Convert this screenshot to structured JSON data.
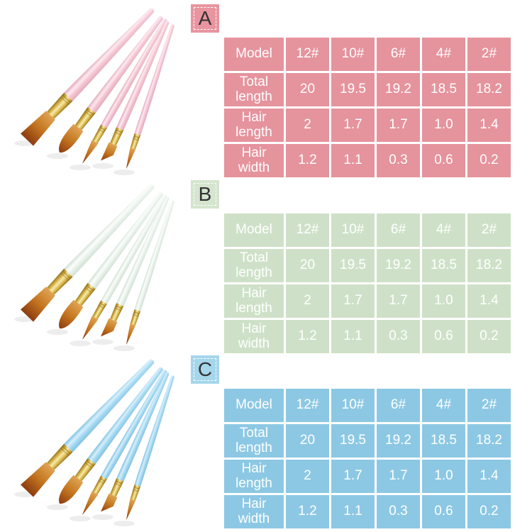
{
  "page": {
    "background": "#ffffff"
  },
  "brush_palette": {
    "bristle_base": "#dfa352",
    "bristle_mid": "#c4751f",
    "bristle_tip": "#8c3c10",
    "ferrule_dark": "#8f6d1c",
    "ferrule_gold": "#d9b84a",
    "ferrule_highlight": "#f7eab0",
    "table_text": "#ffffff"
  },
  "sections": [
    {
      "label": "A",
      "photo": "five-pink-paint-brushes",
      "colors": {
        "table_cell": "#e5939d",
        "label_bg": "#e8959f",
        "handle": "#f5c8d4",
        "handle_shade": "#e3a8ba",
        "handle_light": "#fdeaf1"
      },
      "table": {
        "corner": "Model",
        "columns": [
          "12#",
          "10#",
          "6#",
          "4#",
          "2#"
        ],
        "rows": [
          {
            "label": "Total length",
            "values": [
              "20",
              "19.5",
              "19.2",
              "18.5",
              "18.2"
            ]
          },
          {
            "label": "Hair length",
            "values": [
              "2",
              "1.7",
              "1.7",
              "1.0",
              "1.4"
            ]
          },
          {
            "label": "Hair width",
            "values": [
              "1.2",
              "1.1",
              "0.3",
              "0.6",
              "0.2"
            ]
          }
        ]
      }
    },
    {
      "label": "B",
      "photo": "five-mint-white-paint-brushes",
      "colors": {
        "table_cell": "#cee1c8",
        "label_bg": "#d5e5cf",
        "handle": "#eaf3ec",
        "handle_shade": "#cfe0d2",
        "handle_light": "#fbfdfb"
      },
      "table": {
        "corner": "Model",
        "columns": [
          "12#",
          "10#",
          "6#",
          "4#",
          "2#"
        ],
        "rows": [
          {
            "label": "Total length",
            "values": [
              "20",
              "19.5",
              "19.2",
              "18.5",
              "18.2"
            ]
          },
          {
            "label": "Hair length",
            "values": [
              "2",
              "1.7",
              "1.7",
              "1.0",
              "1.4"
            ]
          },
          {
            "label": "Hair width",
            "values": [
              "1.2",
              "1.1",
              "0.3",
              "0.6",
              "0.2"
            ]
          }
        ]
      }
    },
    {
      "label": "C",
      "photo": "five-blue-paint-brushes",
      "colors": {
        "table_cell": "#8cc8e4",
        "label_bg": "#a5d6ec",
        "handle": "#a8daf2",
        "handle_shade": "#7fc0e2",
        "handle_light": "#d5effc"
      },
      "table": {
        "corner": "Model",
        "columns": [
          "12#",
          "10#",
          "6#",
          "4#",
          "2#"
        ],
        "rows": [
          {
            "label": "Total length",
            "values": [
              "20",
              "19.5",
              "19.2",
              "18.5",
              "18.2"
            ]
          },
          {
            "label": "Hair length",
            "values": [
              "2",
              "1.7",
              "1.7",
              "1.0",
              "1.4"
            ]
          },
          {
            "label": "Hair width",
            "values": [
              "1.2",
              "1.1",
              "0.3",
              "0.6",
              "0.2"
            ]
          }
        ]
      }
    }
  ]
}
